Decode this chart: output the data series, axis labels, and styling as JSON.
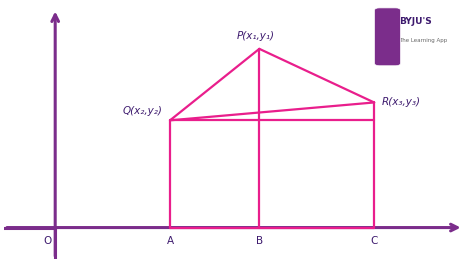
{
  "bg_color": "#ffffff",
  "axis_color": "#7B2D8B",
  "line_color": "#E91E8C",
  "axis_linewidth": 2.2,
  "geo_linewidth": 1.6,
  "P": [
    3.2,
    4.0
  ],
  "Q": [
    1.8,
    2.4
  ],
  "R": [
    5.0,
    2.8
  ],
  "A": [
    1.8,
    0
  ],
  "B": [
    3.2,
    0
  ],
  "C": [
    5.0,
    0
  ],
  "O": [
    0,
    0
  ],
  "label_P": "P(x₁,y₁)",
  "label_Q": "Q(x₂,y₂)",
  "label_R": "R(x₃,y₃)",
  "label_A": "A",
  "label_B": "B",
  "label_C": "C",
  "label_O": "O",
  "xlim": [
    -0.8,
    6.5
  ],
  "ylim": [
    -0.7,
    5.0
  ],
  "figsize": [
    4.74,
    2.63
  ],
  "dpi": 100,
  "font_color": "#3D1A6E",
  "label_fontsize": 7.5,
  "tick_fontsize": 8
}
